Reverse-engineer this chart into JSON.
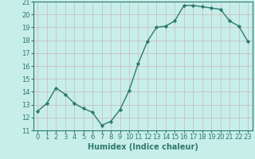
{
  "x": [
    0,
    1,
    2,
    3,
    4,
    5,
    6,
    7,
    8,
    9,
    10,
    11,
    12,
    13,
    14,
    15,
    16,
    17,
    18,
    19,
    20,
    21,
    22,
    23
  ],
  "y": [
    12.5,
    13.1,
    14.3,
    13.8,
    13.1,
    12.7,
    12.4,
    11.4,
    11.7,
    12.6,
    14.1,
    16.2,
    17.9,
    19.0,
    19.1,
    19.5,
    20.7,
    20.7,
    20.6,
    20.5,
    20.4,
    19.5,
    19.1,
    17.9
  ],
  "title": "",
  "xlabel": "Humidex (Indice chaleur)",
  "ylabel": "",
  "ylim": [
    11,
    21
  ],
  "xlim": [
    -0.5,
    23.5
  ],
  "yticks": [
    11,
    12,
    13,
    14,
    15,
    16,
    17,
    18,
    19,
    20,
    21
  ],
  "xticks": [
    0,
    1,
    2,
    3,
    4,
    5,
    6,
    7,
    8,
    9,
    10,
    11,
    12,
    13,
    14,
    15,
    16,
    17,
    18,
    19,
    20,
    21,
    22,
    23
  ],
  "line_color": "#2d7a6e",
  "bg_color": "#c8eeea",
  "grid_color": "#c8b8b8",
  "marker": "D",
  "marker_size": 2.2,
  "line_width": 1.0,
  "xlabel_fontsize": 7,
  "tick_fontsize": 6,
  "tick_color": "#2d7a6e",
  "spine_color": "#2d7a6e"
}
